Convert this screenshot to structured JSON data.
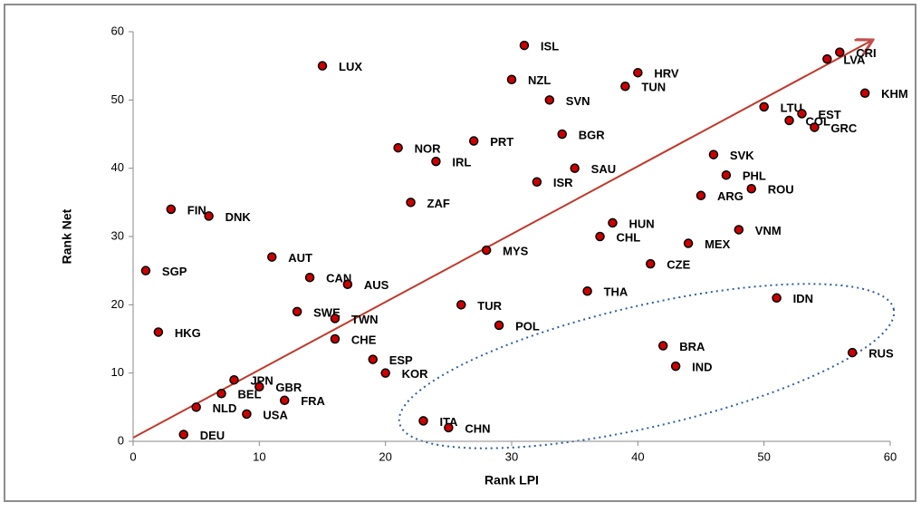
{
  "chart_data": {
    "type": "scatter",
    "xlabel": "Rank LPI",
    "ylabel": "Rank Net",
    "labels": [
      "ISL",
      "LUX",
      "NZL",
      "HRV",
      "TUN",
      "SVN",
      "CRI",
      "LVA",
      "KHM",
      "LTU",
      "EST",
      "COL",
      "GRC",
      "PRT",
      "BGR",
      "NOR",
      "IRL",
      "SAU",
      "ISR",
      "SVK",
      "PHL",
      "ROU",
      "ARG",
      "ZAF",
      "FIN",
      "DNK",
      "HUN",
      "CHL",
      "VNM",
      "MEX",
      "MYS",
      "AUT",
      "CZE",
      "SGP",
      "CAN",
      "AUS",
      "THA",
      "IDN",
      "TUR",
      "SWE",
      "TWN",
      "CHE",
      "POL",
      "HKG",
      "BRA",
      "RUS",
      "ESP",
      "IND",
      "KOR",
      "JPN",
      "GBR",
      "BEL",
      "FRA",
      "NLD",
      "USA",
      "ITA",
      "CHN",
      "DEU"
    ],
    "x": [
      31,
      15,
      30,
      40,
      39,
      33,
      56,
      55,
      58,
      50,
      53,
      52,
      54,
      27,
      34,
      21,
      24,
      35,
      32,
      46,
      47,
      49,
      45,
      22,
      3,
      6,
      38,
      37,
      48,
      44,
      28,
      11,
      41,
      1,
      14,
      17,
      36,
      51,
      26,
      13,
      16,
      16,
      29,
      2,
      42,
      57,
      19,
      43,
      20,
      8,
      10,
      7,
      12,
      5,
      9,
      23,
      25,
      4
    ],
    "values": [
      58,
      55,
      53,
      54,
      52,
      50,
      57,
      56,
      51,
      49,
      48,
      47,
      46,
      44,
      45,
      43,
      41,
      40,
      38,
      42,
      39,
      37,
      36,
      35,
      34,
      33,
      32,
      30,
      31,
      29,
      28,
      27,
      26,
      25,
      24,
      23,
      22,
      21,
      20,
      19,
      18,
      15,
      17,
      16,
      14,
      13,
      12,
      11,
      10,
      9,
      8,
      7,
      6,
      5,
      4,
      3,
      2,
      1
    ],
    "color": "#cc0000",
    "xlim": [
      0,
      60
    ],
    "ylim": [
      0,
      60
    ],
    "xticks": [
      0,
      10,
      20,
      30,
      40,
      50,
      60
    ],
    "yticks": [
      0,
      10,
      20,
      30,
      40,
      50,
      60
    ]
  }
}
